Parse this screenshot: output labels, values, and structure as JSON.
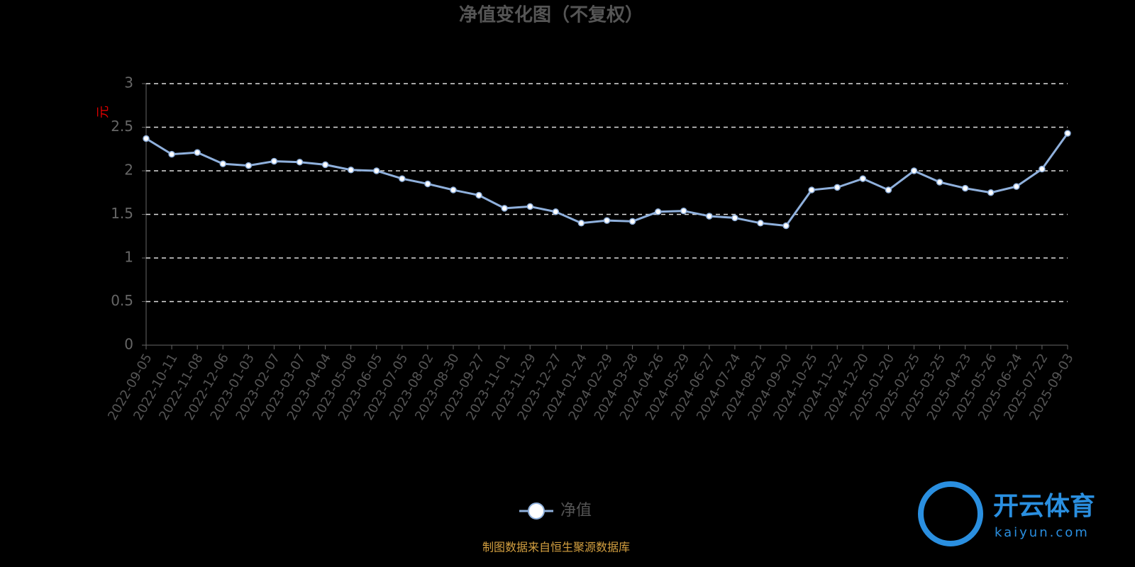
{
  "chart_data": {
    "type": "line",
    "title": "净值变化图（不复权）",
    "y_label": "元",
    "categories": [
      "2022-09-05",
      "2022-10-11",
      "2022-11-08",
      "2022-12-06",
      "2023-01-03",
      "2023-02-07",
      "2023-03-07",
      "2023-04-04",
      "2023-05-08",
      "2023-06-05",
      "2023-07-05",
      "2023-08-02",
      "2023-08-30",
      "2023-09-27",
      "2023-11-01",
      "2023-11-29",
      "2023-12-27",
      "2024-01-24",
      "2024-02-29",
      "2024-03-28",
      "2024-04-26",
      "2024-05-29",
      "2024-06-27",
      "2024-07-24",
      "2024-08-21",
      "2024-09-20",
      "2024-10-25",
      "2024-11-22",
      "2024-12-20",
      "2025-01-20",
      "2025-02-25",
      "2025-03-25",
      "2025-04-23",
      "2025-05-26",
      "2025-06-24",
      "2025-07-22",
      "2025-09-03"
    ],
    "series": [
      {
        "name": "净值",
        "color": "#8fb0dc",
        "values": [
          2.37,
          2.19,
          2.21,
          2.08,
          2.06,
          2.11,
          2.1,
          2.07,
          2.01,
          2.0,
          1.91,
          1.85,
          1.78,
          1.72,
          1.57,
          1.59,
          1.53,
          1.4,
          1.43,
          1.42,
          1.53,
          1.54,
          1.48,
          1.46,
          1.4,
          1.37,
          1.78,
          1.81,
          1.91,
          1.78,
          2.0,
          1.87,
          1.8,
          1.75,
          1.82,
          2.02,
          2.43
        ]
      }
    ],
    "ylim": [
      0,
      3
    ],
    "yticks": [
      0,
      0.5,
      1,
      1.5,
      2,
      2.5,
      3
    ],
    "grid": true,
    "source": "制图数据来自恒生聚源数据库",
    "watermark": {
      "brand": "开云体育",
      "site": "kaiyun.com"
    }
  }
}
